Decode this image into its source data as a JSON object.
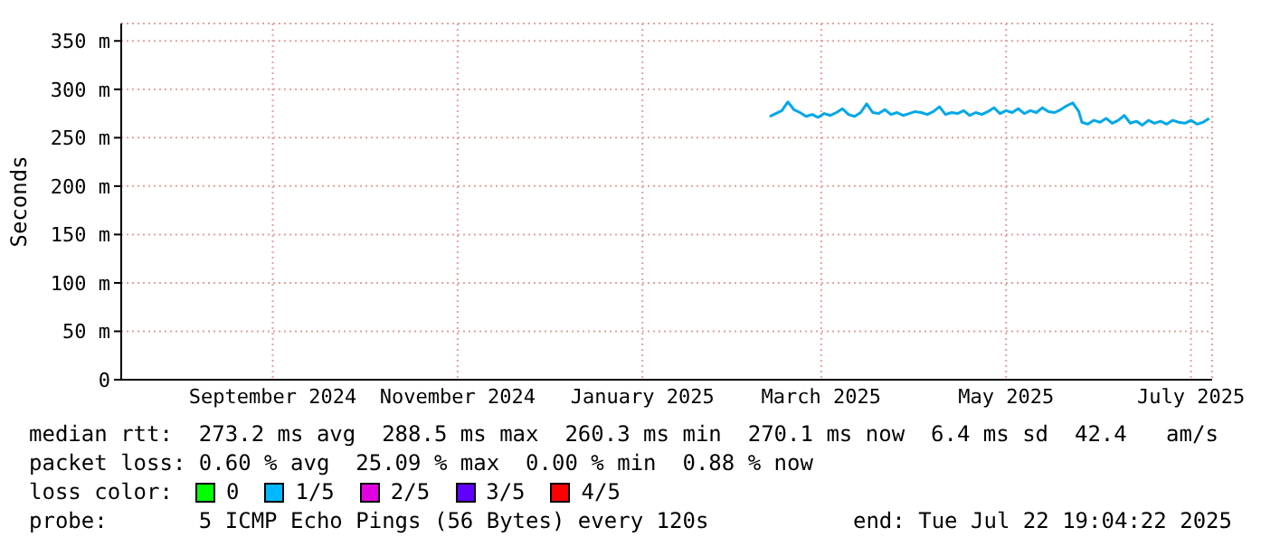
{
  "chart_data": {
    "type": "line",
    "ylabel": "Seconds",
    "xlim": [
      "2024-07-27",
      "2025-07-22"
    ],
    "xticks": [
      {
        "value": "2024-09-15",
        "label": "September 2024"
      },
      {
        "value": "2024-11-15",
        "label": "November 2024"
      },
      {
        "value": "2025-01-15",
        "label": "January 2025"
      },
      {
        "value": "2025-03-15",
        "label": "March 2025"
      },
      {
        "value": "2025-05-15",
        "label": "May 2025"
      },
      {
        "value": "2025-07-15",
        "label": "July 2025"
      }
    ],
    "ylim": [
      0,
      368
    ],
    "yticks": [
      0,
      {
        "value": 50,
        "label": "50 m"
      },
      {
        "value": 100,
        "label": "100 m"
      },
      {
        "value": 150,
        "label": "150 m"
      },
      {
        "value": 200,
        "label": "200 m"
      },
      {
        "value": 250,
        "label": "250 m"
      },
      {
        "value": 300,
        "label": "300 m"
      },
      {
        "value": 350,
        "label": "350 m"
      }
    ],
    "grid": true,
    "legend": false,
    "marker": "none",
    "line_style": "solid",
    "x": [
      "2025-02-26",
      "2025-02-28",
      "2025-03-02",
      "2025-03-04",
      "2025-03-06",
      "2025-03-08",
      "2025-03-10",
      "2025-03-12",
      "2025-03-14",
      "2025-03-16",
      "2025-03-18",
      "2025-03-20",
      "2025-03-22",
      "2025-03-24",
      "2025-03-26",
      "2025-03-28",
      "2025-03-30",
      "2025-04-01",
      "2025-04-03",
      "2025-04-05",
      "2025-04-07",
      "2025-04-09",
      "2025-04-11",
      "2025-04-13",
      "2025-04-15",
      "2025-04-17",
      "2025-04-19",
      "2025-04-21",
      "2025-04-23",
      "2025-04-25",
      "2025-04-27",
      "2025-04-29",
      "2025-05-01",
      "2025-05-03",
      "2025-05-05",
      "2025-05-07",
      "2025-05-09",
      "2025-05-11",
      "2025-05-13",
      "2025-05-15",
      "2025-05-17",
      "2025-05-19",
      "2025-05-21",
      "2025-05-23",
      "2025-05-25",
      "2025-05-27",
      "2025-05-29",
      "2025-05-31",
      "2025-06-02",
      "2025-06-04",
      "2025-06-06",
      "2025-06-08",
      "2025-06-09",
      "2025-06-11",
      "2025-06-13",
      "2025-06-15",
      "2025-06-17",
      "2025-06-19",
      "2025-06-21",
      "2025-06-23",
      "2025-06-25",
      "2025-06-27",
      "2025-06-29",
      "2025-07-01",
      "2025-07-03",
      "2025-07-05",
      "2025-07-07",
      "2025-07-09",
      "2025-07-11",
      "2025-07-13",
      "2025-07-15",
      "2025-07-17",
      "2025-07-19",
      "2025-07-21"
    ],
    "series": [
      {
        "color": "#00a8e8",
        "values": [
          272,
          275,
          278,
          287,
          279,
          276,
          272,
          274,
          271,
          275,
          273,
          276,
          280,
          274,
          272,
          276,
          285,
          276,
          275,
          279,
          274,
          276,
          273,
          275,
          277,
          276,
          274,
          277,
          282,
          274,
          276,
          275,
          278,
          273,
          276,
          274,
          277,
          281,
          275,
          278,
          276,
          280,
          275,
          278,
          276,
          281,
          277,
          276,
          279,
          283,
          286,
          277,
          266,
          264,
          268,
          266,
          270,
          265,
          268,
          273,
          265,
          267,
          263,
          268,
          265,
          267,
          264,
          268,
          266,
          265,
          268,
          264,
          266,
          270
        ]
      }
    ],
    "annotations": [
      "median rtt:  273.2 ms avg  288.5 ms max  260.3 ms min  270.1 ms now  6.4 ms sd  42.4   am/s",
      "packet loss: 0.60 % avg  25.09 % max  0.00 % min  0.88 % now",
      "loss color:",
      "0",
      "1/5",
      "2/5",
      "3/5",
      "4/5",
      "probe:       5 ICMP Echo Pings (56 Bytes) every 120s",
      "end: Tue Jul 22 19:04:22 2025"
    ]
  }
}
